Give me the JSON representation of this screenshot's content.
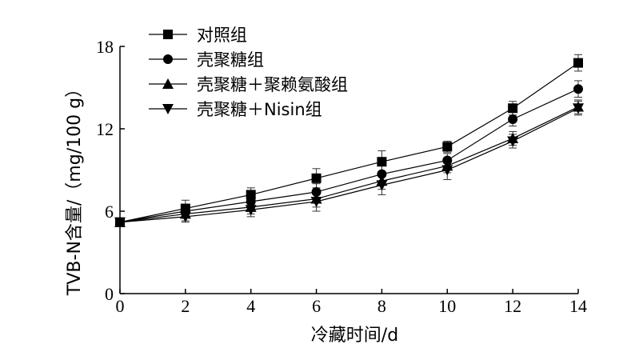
{
  "chart_data": {
    "type": "line",
    "xlabel": "冷藏时间/d",
    "ylabel": "TVB-N含量/（mg/100 g）",
    "xlim": [
      0,
      14
    ],
    "ylim": [
      0,
      18
    ],
    "x_ticks": [
      "0",
      "2",
      "4",
      "6",
      "8",
      "10",
      "12",
      "14"
    ],
    "y_ticks": [
      "0",
      "6",
      "12",
      "18"
    ],
    "x": [
      0,
      2,
      4,
      6,
      8,
      10,
      12,
      14
    ],
    "grid": false,
    "legend_position": "top-left",
    "series": [
      {
        "name": "对照组",
        "marker": "square",
        "values": [
          5.2,
          6.2,
          7.2,
          8.4,
          9.6,
          10.7,
          13.5,
          16.8
        ],
        "errors": [
          0.3,
          0.6,
          0.5,
          0.7,
          0.8,
          0.4,
          0.5,
          0.6
        ]
      },
      {
        "name": "壳聚糖组",
        "marker": "circle",
        "values": [
          5.2,
          6.0,
          6.7,
          7.4,
          8.7,
          9.7,
          12.7,
          14.9
        ],
        "errors": [
          0.3,
          0.5,
          0.5,
          0.6,
          0.6,
          0.5,
          0.5,
          0.6
        ]
      },
      {
        "name": "壳聚糖＋聚赖氨酸组",
        "marker": "triangle-up",
        "values": [
          5.2,
          5.8,
          6.3,
          6.9,
          8.2,
          9.3,
          11.3,
          13.6
        ],
        "errors": [
          0.3,
          0.5,
          0.5,
          0.6,
          0.6,
          0.5,
          0.5,
          0.5
        ]
      },
      {
        "name": "壳聚糖＋Nisin组",
        "marker": "triangle-down",
        "values": [
          5.2,
          5.6,
          6.1,
          6.7,
          7.9,
          9.0,
          11.1,
          13.5
        ],
        "errors": [
          0.3,
          0.4,
          0.5,
          0.7,
          0.7,
          0.7,
          0.5,
          0.5
        ]
      }
    ]
  }
}
